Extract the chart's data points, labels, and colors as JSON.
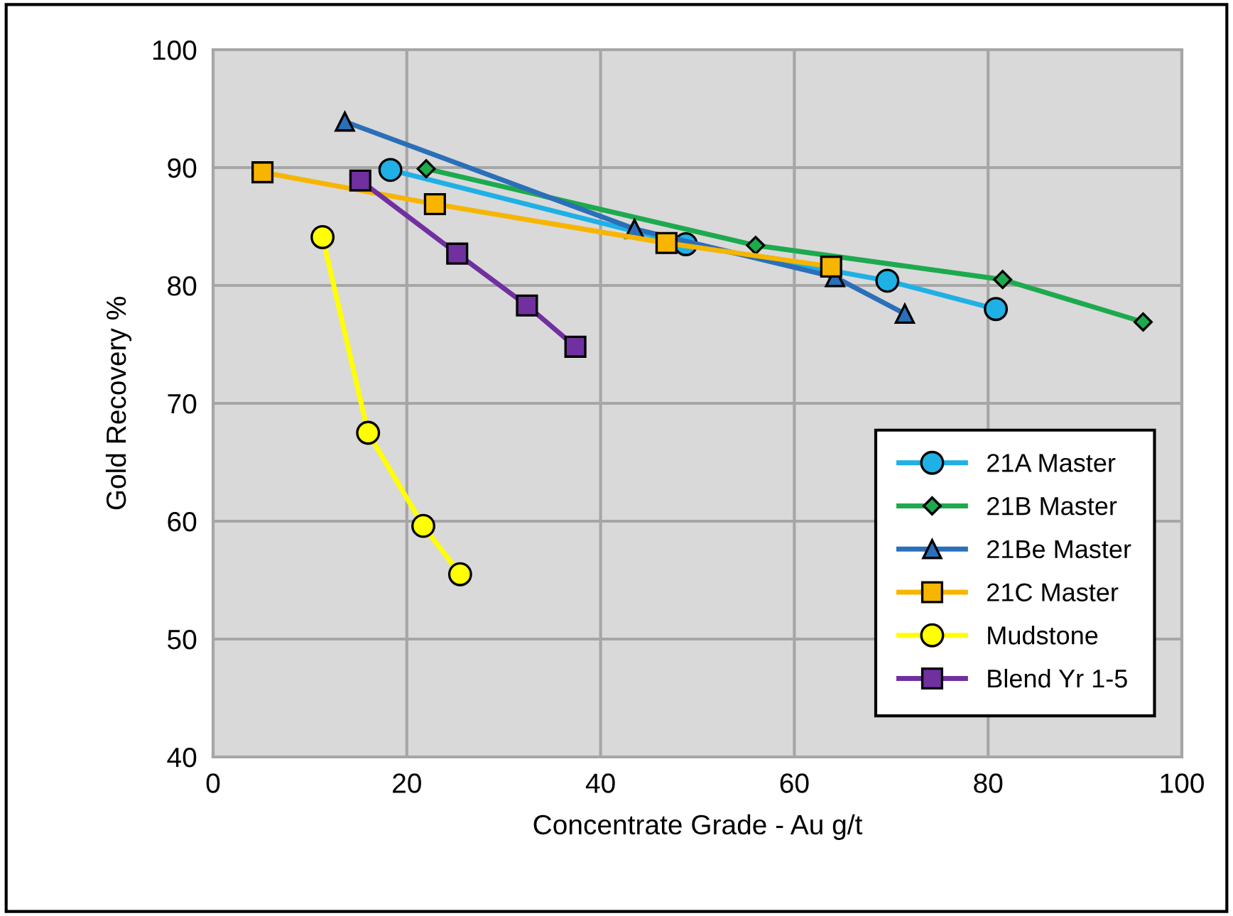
{
  "chart_data": {
    "type": "line",
    "xlabel": "Concentrate Grade - Au g/t",
    "ylabel": "Gold Recovery %",
    "xlim": [
      0,
      100
    ],
    "xticks": [
      0,
      20,
      40,
      60,
      80,
      100
    ],
    "ylim": [
      40,
      100
    ],
    "yticks": [
      40,
      50,
      60,
      70,
      80,
      90,
      100
    ],
    "grid": true,
    "legend": "bottom right",
    "series": [
      {
        "name": "21A Master",
        "color": "#1fb0e6",
        "marker": "circle",
        "x": [
          18.3,
          48.8,
          69.6,
          80.8
        ],
        "values": [
          89.8,
          83.5,
          80.4,
          78.0
        ]
      },
      {
        "name": "21B Master",
        "color": "#1daa4e",
        "marker": "diamond",
        "x": [
          22.0,
          56.0,
          81.5,
          96.0
        ],
        "values": [
          89.9,
          83.4,
          80.5,
          76.9
        ]
      },
      {
        "name": "21Be Master",
        "color": "#2a6fb8",
        "marker": "triangle",
        "x": [
          13.6,
          43.5,
          64.2,
          71.4
        ],
        "values": [
          93.9,
          84.8,
          80.7,
          77.6
        ]
      },
      {
        "name": "21C Master",
        "color": "#f7b500",
        "marker": "square",
        "x": [
          5.1,
          22.9,
          46.8,
          63.8
        ],
        "values": [
          89.6,
          86.9,
          83.6,
          81.6
        ]
      },
      {
        "name": "Mudstone",
        "color": "#ffff00",
        "marker": "circle",
        "x": [
          11.3,
          16.0,
          21.7,
          25.5
        ],
        "values": [
          84.1,
          67.5,
          59.6,
          55.5
        ]
      },
      {
        "name": "Blend Yr 1-5",
        "color": "#7030a0",
        "marker": "square",
        "x": [
          15.2,
          25.2,
          32.4,
          37.4
        ],
        "values": [
          88.9,
          82.7,
          78.3,
          74.8
        ]
      }
    ]
  }
}
